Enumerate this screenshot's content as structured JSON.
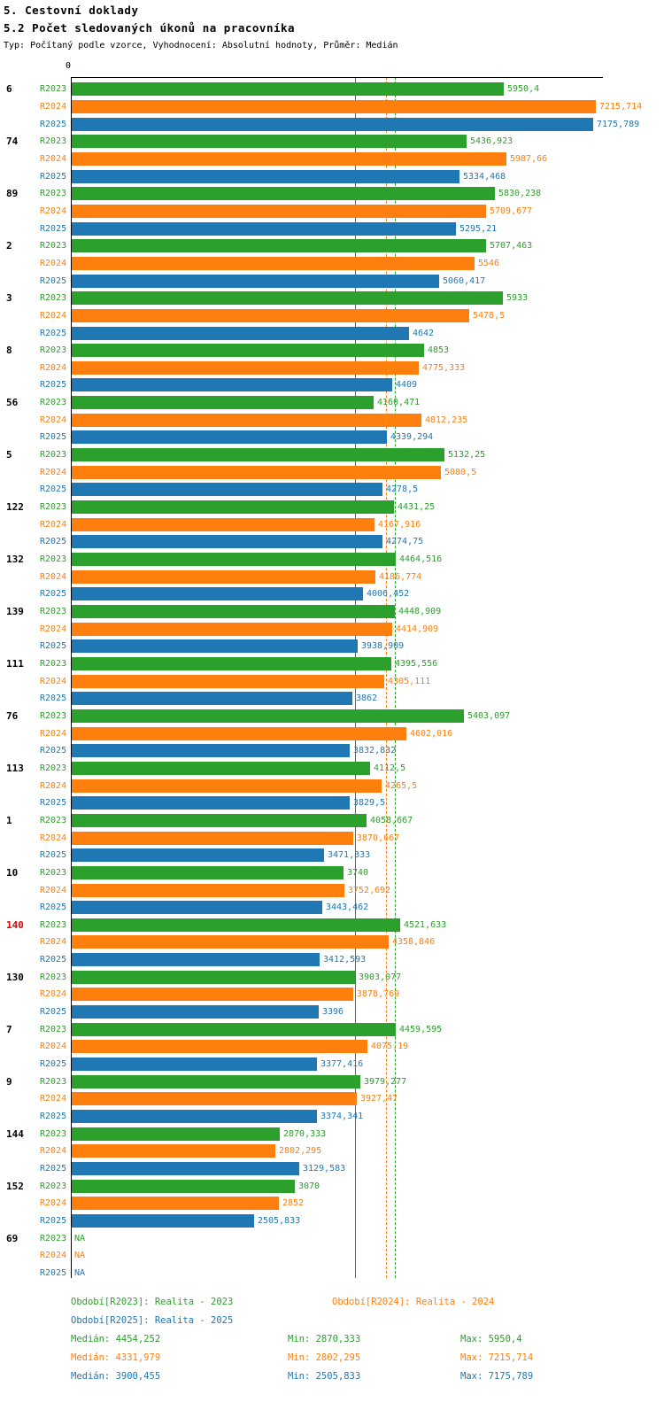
{
  "header": {
    "title": "5. Cestovní doklady",
    "subtitle": "5.2 Počet sledovaných úkonů na pracovníka",
    "meta": "Typ: Počítaný podle vzorce, Vyhodnocení: Absolutní hodnoty, Průměr: Medián"
  },
  "colors": {
    "R2023": "#2ca02c",
    "R2024": "#ff7f0e",
    "R2025": "#1f77b4",
    "highlight": "#e60000",
    "axis": "#000000"
  },
  "chart_data": {
    "type": "bar",
    "orientation": "horizontal",
    "title": "5.2 Počet sledovaných úkonů na pracovníka",
    "axis_origin_label": "0",
    "xlim": [
      0,
      7215.714
    ],
    "series": [
      "R2023",
      "R2024",
      "R2025"
    ],
    "na_text": "NA",
    "groups": [
      {
        "category": "6",
        "values": [
          5950.4,
          7215.714,
          7175.789
        ],
        "labels": [
          "5950,4",
          "7215,714",
          "7175,789"
        ]
      },
      {
        "category": "74",
        "values": [
          5436.923,
          5987.66,
          5334.468
        ],
        "labels": [
          "5436,923",
          "5987,66",
          "5334,468"
        ]
      },
      {
        "category": "89",
        "values": [
          5830.238,
          5709.677,
          5295.21
        ],
        "labels": [
          "5830,238",
          "5709,677",
          "5295,21"
        ]
      },
      {
        "category": "2",
        "values": [
          5707.463,
          5546,
          5060.417
        ],
        "labels": [
          "5707,463",
          "5546",
          "5060,417"
        ]
      },
      {
        "category": "3",
        "values": [
          5933,
          5478.5,
          4642
        ],
        "labels": [
          "5933",
          "5478,5",
          "4642"
        ]
      },
      {
        "category": "8",
        "values": [
          4853,
          4775.333,
          4409
        ],
        "labels": [
          "4853",
          "4775,333",
          "4409"
        ]
      },
      {
        "category": "56",
        "values": [
          4160.471,
          4812.235,
          4339.294
        ],
        "labels": [
          "4160,471",
          "4812,235",
          "4339,294"
        ]
      },
      {
        "category": "5",
        "values": [
          5132.25,
          5080.5,
          4278.5
        ],
        "labels": [
          "5132,25",
          "5080,5",
          "4278,5"
        ]
      },
      {
        "category": "122",
        "values": [
          4431.25,
          4167.916,
          4274.75
        ],
        "labels": [
          "4431,25",
          "4167,916",
          "4274,75"
        ]
      },
      {
        "category": "132",
        "values": [
          4464.516,
          4186.774,
          4006.452
        ],
        "labels": [
          "4464,516",
          "4186,774",
          "4006,452"
        ]
      },
      {
        "category": "139",
        "values": [
          4448.909,
          4414.909,
          3938.909
        ],
        "labels": [
          "4448,909",
          "4414,909",
          "3938,909"
        ]
      },
      {
        "category": "111",
        "values": [
          4395.556,
          4305.111,
          3862
        ],
        "labels": [
          "4395,556",
          "4305,111",
          "3862"
        ]
      },
      {
        "category": "76",
        "values": [
          5403.097,
          4602.016,
          3832.832
        ],
        "labels": [
          "5403,097",
          "4602,016",
          "3832,832"
        ]
      },
      {
        "category": "113",
        "values": [
          4112.5,
          4265.5,
          3829.5
        ],
        "labels": [
          "4112,5",
          "4265,5",
          "3829,5"
        ]
      },
      {
        "category": "1",
        "values": [
          4058.667,
          3870.667,
          3471.333
        ],
        "labels": [
          "4058,667",
          "3870,667",
          "3471,333"
        ]
      },
      {
        "category": "10",
        "values": [
          3740,
          3752.692,
          3443.462
        ],
        "labels": [
          "3740",
          "3752,692",
          "3443,462"
        ]
      },
      {
        "category": "140",
        "highlight": true,
        "values": [
          4521.633,
          4358.846,
          3412.593
        ],
        "labels": [
          "4521,633",
          "4358,846",
          "3412,593"
        ]
      },
      {
        "category": "130",
        "values": [
          3903.077,
          3878.769,
          3396
        ],
        "labels": [
          "3903,077",
          "3878,769",
          "3396"
        ]
      },
      {
        "category": "7",
        "values": [
          4459.595,
          4075.19,
          3377.416
        ],
        "labels": [
          "4459,595",
          "4075,19",
          "3377,416"
        ]
      },
      {
        "category": "9",
        "values": [
          3979.277,
          3927.47,
          3374.341
        ],
        "labels": [
          "3979,277",
          "3927,47",
          "3374,341"
        ]
      },
      {
        "category": "144",
        "values": [
          2870.333,
          2802.295,
          3129.583
        ],
        "labels": [
          "2870,333",
          "2802,295",
          "3129,583"
        ]
      },
      {
        "category": "152",
        "values": [
          3070,
          2852,
          2505.833
        ],
        "labels": [
          "3070",
          "2852",
          "2505,833"
        ]
      },
      {
        "category": "69",
        "values": [
          null,
          null,
          null
        ],
        "labels": [
          "NA",
          "NA",
          "NA"
        ]
      }
    ],
    "medians": [
      {
        "series": "R2023",
        "value": 4454.252,
        "style": "dashed"
      },
      {
        "series": "R2024",
        "value": 4331.979,
        "style": "dashed"
      },
      {
        "series": "R2025",
        "value": 3900.455,
        "style": "solid"
      }
    ]
  },
  "legend": {
    "periods": [
      {
        "label": "Období[R2023]: Realita - 2023",
        "series": "R2023"
      },
      {
        "label": "Období[R2024]: Realita - 2024",
        "series": "R2024"
      },
      {
        "label": "Období[R2025]: Realita - 2025",
        "series": "R2025"
      }
    ],
    "stats": [
      {
        "series": "R2023",
        "median": "Medián: 4454,252",
        "min": "Min: 2870,333",
        "max": "Max: 5950,4"
      },
      {
        "series": "R2024",
        "median": "Medián: 4331,979",
        "min": "Min: 2802,295",
        "max": "Max: 7215,714"
      },
      {
        "series": "R2025",
        "median": "Medián: 3900,455",
        "min": "Min: 2505,833",
        "max": "Max: 7175,789"
      }
    ]
  }
}
